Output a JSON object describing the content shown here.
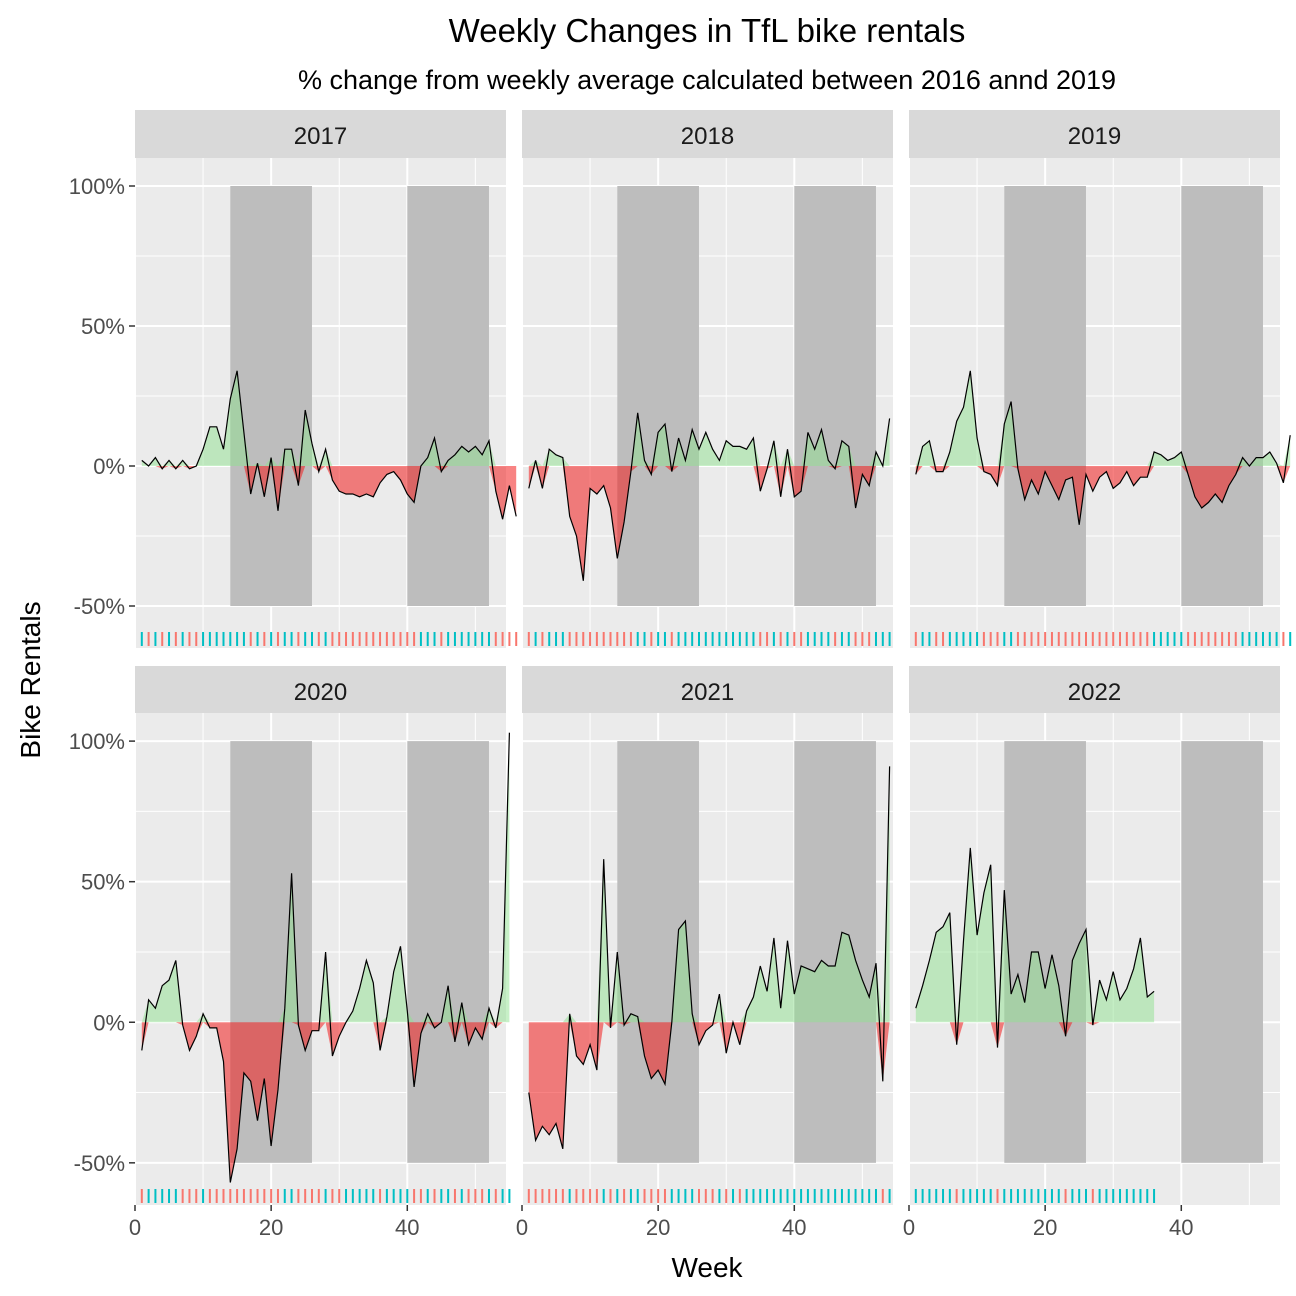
{
  "chart_data": {
    "type": "area",
    "title": "Weekly Changes in TfL bike rentals",
    "subtitle": "% change from weekly average calculated between 2016 annd 2019",
    "xlabel": "Week",
    "ylabel": "Bike Rentals",
    "xlim": [
      0,
      54.5
    ],
    "ylim": [
      -65,
      110
    ],
    "x_ticks": [
      0,
      20,
      40
    ],
    "y_ticks": [
      -50,
      0,
      50,
      100
    ],
    "y_tick_labels": [
      "-50%",
      "0%",
      "50%",
      "100%"
    ],
    "shaded_week_ranges": [
      [
        14,
        26
      ],
      [
        40,
        52
      ]
    ],
    "shade_y_range": [
      -50,
      100
    ],
    "colors": {
      "positive": "#8fe28f",
      "negative": "#f21d1d",
      "rug_up": "#00BFC4",
      "rug_down": "#F8766D",
      "panel_bg": "#EBEBEB",
      "strip_bg": "#D9D9D9",
      "shade": "#bdbdbd"
    },
    "panels": [
      {
        "year": "2017",
        "weeks_start": 1,
        "values": [
          2,
          0,
          3,
          -1,
          2,
          -1,
          2,
          -1,
          0,
          6,
          14,
          14,
          6,
          24,
          34,
          12,
          -10,
          1,
          -11,
          3,
          -16,
          6,
          6,
          -7,
          20,
          8,
          -2,
          6,
          -5,
          -9,
          -10,
          -10,
          -11,
          -10,
          -11,
          -6,
          -3,
          -2,
          -5,
          -10,
          -13,
          0,
          3,
          10,
          -2,
          2,
          4,
          7,
          5,
          7,
          4,
          9,
          -9,
          -19,
          -7,
          -18
        ]
      },
      {
        "year": "2018",
        "weeks_start": 1,
        "values": [
          -8,
          2,
          -8,
          6,
          4,
          3,
          -18,
          -25,
          -41,
          -8,
          -10,
          -7,
          -15,
          -33,
          -20,
          -2,
          19,
          2,
          -3,
          12,
          15,
          -2,
          10,
          2,
          13,
          6,
          12,
          6,
          2,
          9,
          7,
          7,
          6,
          10,
          -9,
          -1,
          9,
          -11,
          6,
          -11,
          -9,
          12,
          6,
          13,
          2,
          -1,
          9,
          7,
          -15,
          -3,
          -7,
          5,
          0,
          17
        ]
      },
      {
        "year": "2019",
        "weeks_start": 1,
        "values": [
          -3,
          7,
          9,
          -2,
          -2,
          5,
          16,
          21,
          34,
          10,
          -2,
          -3,
          -7,
          15,
          23,
          -1,
          -12,
          -5,
          -10,
          -2,
          -7,
          -12,
          -5,
          -4,
          -21,
          -3,
          -9,
          -4,
          -2,
          -8,
          -6,
          -2,
          -7,
          -4,
          -4,
          5,
          4,
          2,
          3,
          5,
          -3,
          -11,
          -15,
          -13,
          -10,
          -13,
          -7,
          -3,
          3,
          0,
          3,
          3,
          5,
          1,
          -6,
          11
        ]
      },
      {
        "year": "2020",
        "weeks_start": 1,
        "values": [
          -10,
          8,
          5,
          13,
          15,
          22,
          -1,
          -10,
          -5,
          3,
          -2,
          -2,
          -14,
          -57,
          -45,
          -18,
          -21,
          -35,
          -20,
          -44,
          -24,
          5,
          53,
          -1,
          -10,
          -3,
          -3,
          25,
          -12,
          -5,
          0,
          4,
          12,
          22,
          14,
          -10,
          2,
          18,
          27,
          4,
          -23,
          -4,
          3,
          -2,
          0,
          13,
          -7,
          7,
          -8,
          -2,
          -6,
          5,
          -2,
          12,
          103
        ]
      },
      {
        "year": "2021",
        "weeks_start": 1,
        "values": [
          -25,
          -42,
          -37,
          -40,
          -36,
          -45,
          3,
          -12,
          -15,
          -8,
          -17,
          58,
          -2,
          25,
          -1,
          3,
          2,
          -12,
          -20,
          -17,
          -22,
          0,
          33,
          36,
          3,
          -8,
          -3,
          -1,
          10,
          -11,
          0,
          -8,
          4,
          9,
          20,
          11,
          30,
          5,
          29,
          10,
          20,
          19,
          18,
          22,
          20,
          20,
          32,
          31,
          22,
          15,
          9,
          21,
          -21,
          91
        ]
      },
      {
        "year": "2022",
        "weeks_start": 1,
        "values": [
          5,
          13,
          22,
          32,
          34,
          39,
          -8,
          29,
          62,
          31,
          46,
          56,
          -9,
          47,
          10,
          17,
          7,
          25,
          25,
          12,
          24,
          13,
          -5,
          22,
          28,
          33,
          -1,
          15,
          8,
          18,
          8,
          12,
          19,
          30,
          9,
          11
        ]
      }
    ],
    "rug": [
      {
        "year": "2017",
        "direction": [
          "up",
          "down",
          "up",
          "down",
          "up",
          "down",
          "up",
          "down",
          "down",
          "up",
          "up",
          "up",
          "up",
          "up",
          "up",
          "up",
          "down",
          "up",
          "down",
          "up",
          "down",
          "up",
          "up",
          "down",
          "up",
          "up",
          "down",
          "up",
          "down",
          "down",
          "down",
          "down",
          "down",
          "down",
          "down",
          "down",
          "down",
          "down",
          "down",
          "down",
          "down",
          "up",
          "up",
          "up",
          "down",
          "up",
          "up",
          "up",
          "up",
          "up",
          "up",
          "up",
          "down",
          "down",
          "down",
          "down"
        ]
      },
      {
        "year": "2018",
        "direction": [
          "down",
          "up",
          "down",
          "up",
          "up",
          "up",
          "down",
          "down",
          "down",
          "down",
          "down",
          "down",
          "down",
          "down",
          "down",
          "down",
          "up",
          "up",
          "down",
          "up",
          "up",
          "down",
          "up",
          "up",
          "up",
          "up",
          "up",
          "up",
          "up",
          "up",
          "up",
          "up",
          "up",
          "up",
          "down",
          "down",
          "up",
          "down",
          "up",
          "down",
          "down",
          "up",
          "up",
          "up",
          "up",
          "down",
          "up",
          "up",
          "down",
          "down",
          "down",
          "up",
          "up",
          "up"
        ]
      },
      {
        "year": "2019",
        "direction": [
          "down",
          "up",
          "up",
          "down",
          "down",
          "up",
          "up",
          "up",
          "up",
          "up",
          "down",
          "down",
          "down",
          "up",
          "up",
          "down",
          "down",
          "down",
          "down",
          "down",
          "down",
          "down",
          "down",
          "down",
          "down",
          "down",
          "down",
          "down",
          "down",
          "down",
          "down",
          "down",
          "down",
          "down",
          "down",
          "up",
          "up",
          "up",
          "up",
          "up",
          "down",
          "down",
          "down",
          "down",
          "down",
          "down",
          "down",
          "down",
          "up",
          "up",
          "up",
          "up",
          "up",
          "up",
          "down",
          "up"
        ]
      },
      {
        "year": "2020",
        "direction": [
          "down",
          "up",
          "up",
          "up",
          "up",
          "up",
          "down",
          "down",
          "down",
          "up",
          "down",
          "down",
          "down",
          "down",
          "down",
          "down",
          "down",
          "down",
          "down",
          "down",
          "down",
          "up",
          "up",
          "down",
          "down",
          "down",
          "down",
          "up",
          "down",
          "down",
          "up",
          "up",
          "up",
          "up",
          "up",
          "down",
          "up",
          "up",
          "up",
          "up",
          "down",
          "down",
          "up",
          "down",
          "up",
          "up",
          "down",
          "up",
          "down",
          "down",
          "down",
          "up",
          "down",
          "up",
          "up"
        ]
      },
      {
        "year": "2021",
        "direction": [
          "down",
          "down",
          "down",
          "down",
          "down",
          "down",
          "up",
          "down",
          "down",
          "down",
          "down",
          "up",
          "down",
          "up",
          "down",
          "up",
          "up",
          "down",
          "down",
          "down",
          "down",
          "up",
          "up",
          "up",
          "up",
          "down",
          "down",
          "down",
          "up",
          "down",
          "up",
          "down",
          "up",
          "up",
          "up",
          "up",
          "up",
          "up",
          "up",
          "up",
          "up",
          "up",
          "up",
          "up",
          "up",
          "up",
          "up",
          "up",
          "up",
          "up",
          "up",
          "up",
          "down",
          "up"
        ]
      },
      {
        "year": "2022",
        "direction": [
          "up",
          "up",
          "up",
          "up",
          "up",
          "up",
          "down",
          "up",
          "up",
          "up",
          "up",
          "up",
          "down",
          "up",
          "up",
          "up",
          "up",
          "up",
          "up",
          "up",
          "up",
          "up",
          "down",
          "up",
          "up",
          "up",
          "down",
          "up",
          "up",
          "up",
          "up",
          "up",
          "up",
          "up",
          "up",
          "up"
        ]
      }
    ]
  }
}
